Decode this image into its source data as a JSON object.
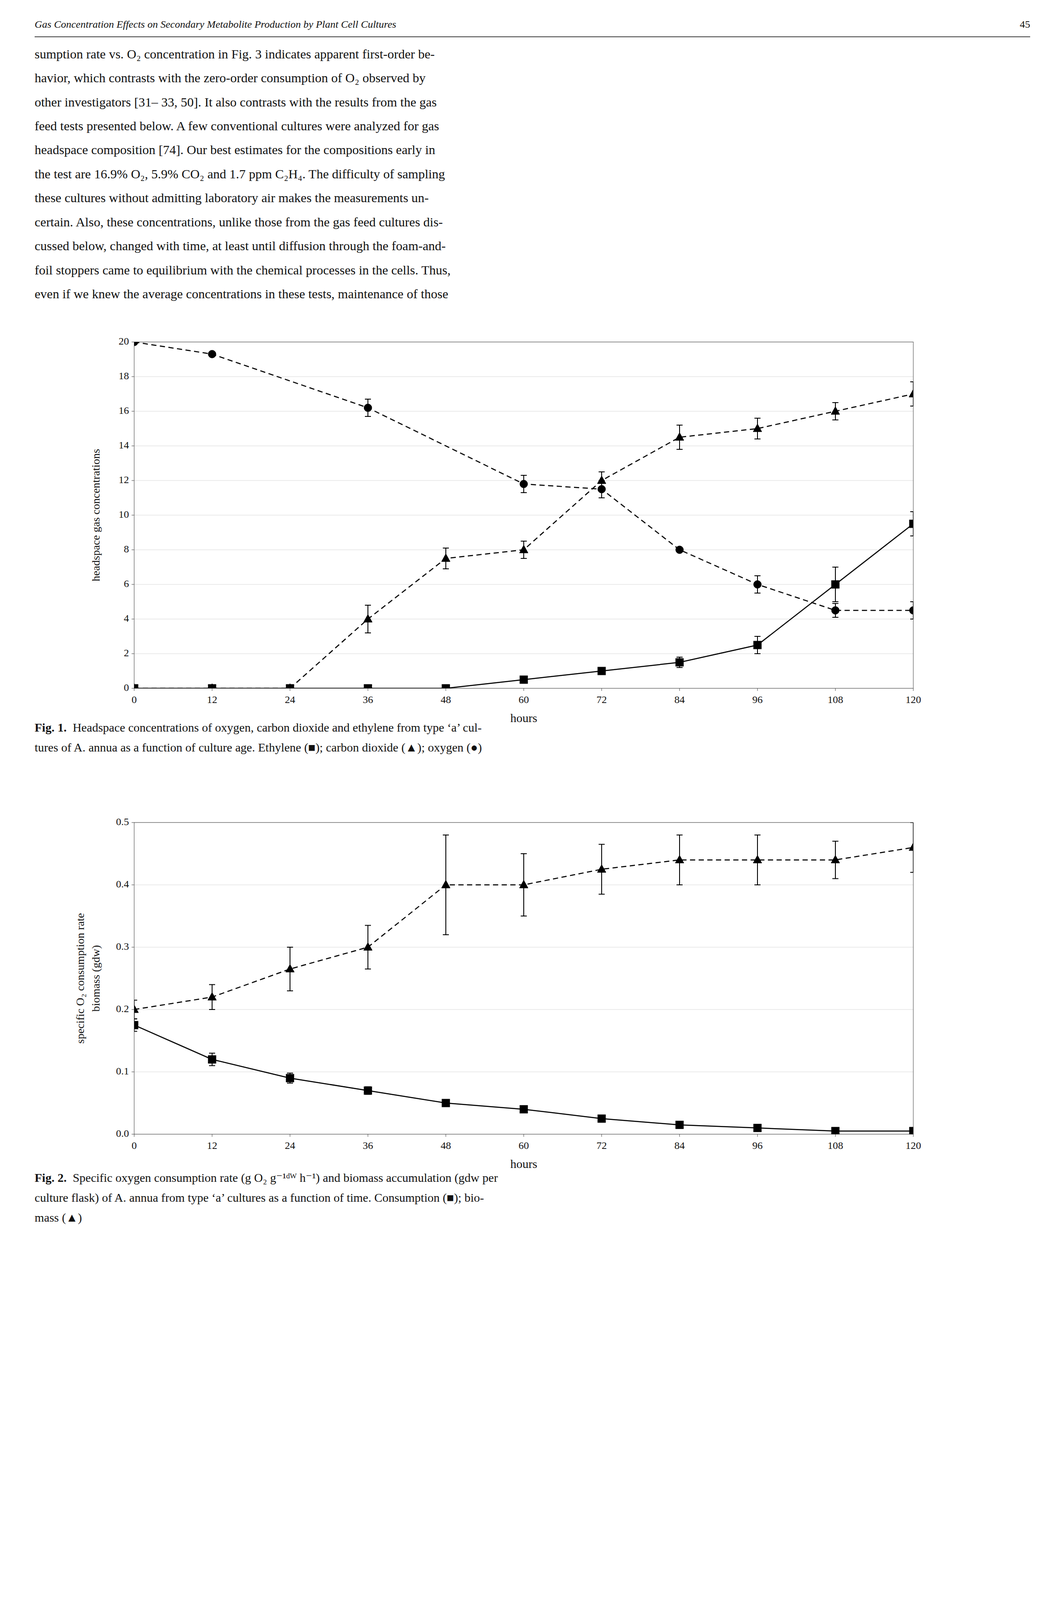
{
  "header_text": "Gas Concentration Effects on Secondary Metabolite Production by Plant Cell Cultures",
  "page_number": "45",
  "body_text": [
    "sumption rate vs. O₂ concentration in Fig. 3 indicates apparent first-order be-",
    "havior, which contrasts with the zero-order consumption of O₂ observed by",
    "other investigators [31– 33, 50]. It also contrasts with the results from the gas",
    "feed tests presented below. A few conventional cultures were analyzed for gas",
    "headspace composition [74]. Our best estimates for the compositions early in",
    "the test are 16.9% O₂, 5.9% CO₂ and 1.7 ppm C₂H₄. The difficulty of sampling",
    "these cultures without admitting laboratory air makes the measurements un-",
    "certain. Also, these concentrations, unlike those from the gas feed cultures dis-",
    "cussed below, changed with time, at least until diffusion through the foam-and-",
    "foil stoppers came to equilibrium with the chemical processes in the cells. Thus,",
    "even if we knew the average concentrations in these tests, maintenance of those"
  ],
  "chart_data": [
    {
      "type": "line",
      "xlabel": "hours",
      "ylabel": "headspace gas concentrations",
      "xlim": [
        0,
        120
      ],
      "ylim": [
        0,
        20
      ],
      "xticks": [
        0,
        12,
        24,
        36,
        48,
        60,
        72,
        84,
        96,
        108,
        120
      ],
      "yticks": [
        0,
        2,
        4,
        6,
        8,
        10,
        12,
        14,
        16,
        18,
        20
      ],
      "grid": "y",
      "caption_label": "Fig. 1.",
      "caption": [
        "Headspace concentrations of oxygen, carbon dioxide and ethylene from type ‘a’ cul-",
        "tures of A. annua as a function of culture age. Ethylene (■); carbon dioxide (▲); oxygen (●)"
      ],
      "series": [
        {
          "color": "#000000",
          "marker": "circle",
          "line_style": "dashed",
          "x": [
            0,
            12,
            36,
            60,
            72,
            84,
            96,
            108,
            120
          ],
          "values": [
            20,
            19.3,
            16.2,
            11.8,
            11.5,
            8.0,
            6.0,
            4.5,
            4.5
          ],
          "yerr": [
            0,
            0,
            0.5,
            0.5,
            0.5,
            0,
            0.5,
            0.4,
            0.5
          ]
        },
        {
          "color": "#000000",
          "marker": "triangle",
          "line_style": "dashed",
          "x": [
            0,
            12,
            24,
            36,
            48,
            60,
            72,
            84,
            96,
            108,
            120
          ],
          "values": [
            0,
            0,
            0,
            4.0,
            7.5,
            8.0,
            12.0,
            14.5,
            15.0,
            16.0,
            17.0
          ],
          "yerr": [
            0,
            0,
            0,
            0.8,
            0.6,
            0.5,
            0.5,
            0.7,
            0.6,
            0.5,
            0.7
          ]
        },
        {
          "color": "#000000",
          "marker": "square",
          "line_style": "solid",
          "x": [
            0,
            12,
            24,
            36,
            48,
            60,
            72,
            84,
            96,
            108,
            120
          ],
          "values": [
            0,
            0,
            0,
            0,
            0,
            0.5,
            1.0,
            1.5,
            2.5,
            6.0,
            9.5
          ],
          "yerr": [
            0,
            0,
            0,
            0,
            0,
            0,
            0,
            0.3,
            0.5,
            1.0,
            0.7
          ]
        }
      ]
    },
    {
      "type": "line",
      "xlabel": "hours",
      "ylabel": "specific O₂ consumption rate\nbiomass (gdw)",
      "xlim": [
        0,
        120
      ],
      "ylim": [
        0.0,
        0.5
      ],
      "xticks": [
        0,
        12,
        24,
        36,
        48,
        60,
        72,
        84,
        96,
        108,
        120
      ],
      "yticks": [
        {
          "value": 0,
          "label": "0.0"
        },
        0.1,
        0.2,
        0.3,
        0.4,
        0.5
      ],
      "grid": "y",
      "caption_label": "Fig. 2.",
      "caption": [
        "Specific oxygen consumption rate (g O₂ g⁻¹ᵈᵂ h⁻¹) and biomass accumulation (gdw per",
        "culture flask) of A. annua from type ‘a’ cultures as a function of time. Consumption (■); bio-",
        "mass (▲)"
      ],
      "series": [
        {
          "color": "#000000",
          "marker": "square",
          "line_style": "solid",
          "x": [
            0,
            12,
            24,
            36,
            48,
            60,
            72,
            84,
            96,
            108,
            120
          ],
          "values": [
            0.175,
            0.12,
            0.09,
            0.07,
            0.05,
            0.04,
            0.025,
            0.015,
            0.01,
            0.005,
            0.005
          ],
          "yerr": [
            0.01,
            0.01,
            0.008,
            0.006,
            0.005,
            0.004,
            0.003,
            0.002,
            0.002,
            0.001,
            0.001
          ]
        },
        {
          "color": "#000000",
          "marker": "triangle",
          "line_style": "dashed",
          "x": [
            0,
            12,
            24,
            36,
            48,
            60,
            72,
            84,
            96,
            108,
            120
          ],
          "values": [
            0.2,
            0.22,
            0.265,
            0.3,
            0.4,
            0.4,
            0.425,
            0.44,
            0.44,
            0.44,
            0.46
          ],
          "yerr": [
            0.015,
            0.02,
            0.035,
            0.035,
            0.08,
            0.05,
            0.04,
            0.04,
            0.04,
            0.03,
            0.04
          ]
        }
      ]
    }
  ]
}
